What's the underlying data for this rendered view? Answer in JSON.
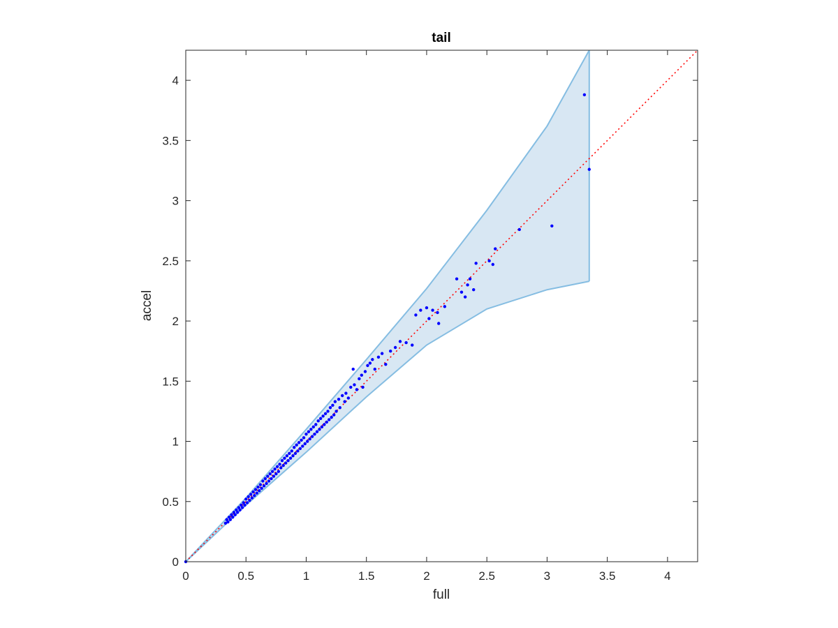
{
  "chart_data": {
    "type": "scatter",
    "title": "tail",
    "xlabel": "full",
    "ylabel": "accel",
    "xlim": [
      0,
      4.25
    ],
    "ylim": [
      0,
      4.25
    ],
    "xticks": [
      0,
      0.5,
      1,
      1.5,
      2,
      2.5,
      3,
      3.5,
      4
    ],
    "yticks": [
      0,
      0.5,
      1,
      1.5,
      2,
      2.5,
      3,
      3.5,
      4
    ],
    "grid": false,
    "colors": {
      "points": "#0000ff",
      "reference_line": "#ff0000",
      "band_fill": "#d8e7f3",
      "band_edge": "#85bde2",
      "axes": "#262626"
    },
    "reference_line": {
      "style": "dotted",
      "x": [
        0,
        4.25
      ],
      "y": [
        0,
        4.25
      ]
    },
    "band": {
      "upper": {
        "x": [
          0,
          0.5,
          1.0,
          1.5,
          2.0,
          2.5,
          3.0,
          3.35
        ],
        "y": [
          0,
          0.53,
          1.1,
          1.68,
          2.27,
          2.92,
          3.62,
          4.25
        ]
      },
      "lower": {
        "x": [
          0,
          0.5,
          1.0,
          1.5,
          2.0,
          2.5,
          3.0,
          3.35
        ],
        "y": [
          0,
          0.47,
          0.91,
          1.37,
          1.8,
          2.1,
          2.26,
          2.33
        ]
      }
    },
    "series": [
      {
        "points": [
          [
            0.0,
            0.0
          ],
          [
            0.33,
            0.32
          ],
          [
            0.34,
            0.35
          ],
          [
            0.35,
            0.33
          ],
          [
            0.36,
            0.37
          ],
          [
            0.37,
            0.35
          ],
          [
            0.38,
            0.39
          ],
          [
            0.39,
            0.37
          ],
          [
            0.4,
            0.41
          ],
          [
            0.41,
            0.39
          ],
          [
            0.42,
            0.43
          ],
          [
            0.43,
            0.41
          ],
          [
            0.44,
            0.45
          ],
          [
            0.45,
            0.43
          ],
          [
            0.46,
            0.47
          ],
          [
            0.47,
            0.45
          ],
          [
            0.48,
            0.49
          ],
          [
            0.49,
            0.47
          ],
          [
            0.5,
            0.52
          ],
          [
            0.51,
            0.49
          ],
          [
            0.52,
            0.54
          ],
          [
            0.53,
            0.51
          ],
          [
            0.54,
            0.56
          ],
          [
            0.55,
            0.53
          ],
          [
            0.56,
            0.58
          ],
          [
            0.57,
            0.55
          ],
          [
            0.58,
            0.6
          ],
          [
            0.59,
            0.57
          ],
          [
            0.6,
            0.62
          ],
          [
            0.61,
            0.59
          ],
          [
            0.62,
            0.64
          ],
          [
            0.63,
            0.61
          ],
          [
            0.64,
            0.67
          ],
          [
            0.65,
            0.63
          ],
          [
            0.66,
            0.69
          ],
          [
            0.67,
            0.65
          ],
          [
            0.68,
            0.71
          ],
          [
            0.69,
            0.67
          ],
          [
            0.7,
            0.73
          ],
          [
            0.71,
            0.69
          ],
          [
            0.72,
            0.75
          ],
          [
            0.73,
            0.71
          ],
          [
            0.74,
            0.77
          ],
          [
            0.75,
            0.73
          ],
          [
            0.76,
            0.79
          ],
          [
            0.77,
            0.75
          ],
          [
            0.78,
            0.81
          ],
          [
            0.79,
            0.78
          ],
          [
            0.8,
            0.84
          ],
          [
            0.81,
            0.8
          ],
          [
            0.82,
            0.86
          ],
          [
            0.83,
            0.82
          ],
          [
            0.84,
            0.88
          ],
          [
            0.85,
            0.84
          ],
          [
            0.86,
            0.9
          ],
          [
            0.87,
            0.86
          ],
          [
            0.88,
            0.92
          ],
          [
            0.89,
            0.88
          ],
          [
            0.9,
            0.95
          ],
          [
            0.91,
            0.9
          ],
          [
            0.92,
            0.97
          ],
          [
            0.93,
            0.92
          ],
          [
            0.94,
            0.99
          ],
          [
            0.95,
            0.94
          ],
          [
            0.96,
            1.01
          ],
          [
            0.97,
            0.96
          ],
          [
            0.98,
            1.03
          ],
          [
            0.99,
            0.98
          ],
          [
            1.0,
            1.06
          ],
          [
            1.01,
            1.0
          ],
          [
            1.02,
            1.08
          ],
          [
            1.03,
            1.02
          ],
          [
            1.04,
            1.1
          ],
          [
            1.05,
            1.04
          ],
          [
            1.06,
            1.12
          ],
          [
            1.07,
            1.06
          ],
          [
            1.08,
            1.14
          ],
          [
            1.09,
            1.08
          ],
          [
            1.1,
            1.17
          ],
          [
            1.11,
            1.1
          ],
          [
            1.12,
            1.19
          ],
          [
            1.13,
            1.12
          ],
          [
            1.14,
            1.21
          ],
          [
            1.15,
            1.14
          ],
          [
            1.16,
            1.23
          ],
          [
            1.17,
            1.16
          ],
          [
            1.18,
            1.25
          ],
          [
            1.19,
            1.18
          ],
          [
            1.2,
            1.28
          ],
          [
            1.21,
            1.2
          ],
          [
            1.22,
            1.3
          ],
          [
            1.23,
            1.22
          ],
          [
            1.24,
            1.33
          ],
          [
            1.25,
            1.25
          ],
          [
            1.27,
            1.35
          ],
          [
            1.28,
            1.28
          ],
          [
            1.3,
            1.38
          ],
          [
            1.32,
            1.33
          ],
          [
            1.33,
            1.4
          ],
          [
            1.35,
            1.36
          ],
          [
            1.37,
            1.45
          ],
          [
            1.39,
            1.6
          ],
          [
            1.4,
            1.47
          ],
          [
            1.42,
            1.43
          ],
          [
            1.44,
            1.52
          ],
          [
            1.46,
            1.55
          ],
          [
            1.47,
            1.45
          ],
          [
            1.49,
            1.58
          ],
          [
            1.51,
            1.63
          ],
          [
            1.53,
            1.65
          ],
          [
            1.55,
            1.68
          ],
          [
            1.57,
            1.6
          ],
          [
            1.6,
            1.7
          ],
          [
            1.63,
            1.73
          ],
          [
            1.66,
            1.64
          ],
          [
            1.7,
            1.75
          ],
          [
            1.74,
            1.78
          ],
          [
            1.78,
            1.83
          ],
          [
            1.83,
            1.82
          ],
          [
            1.88,
            1.8
          ],
          [
            1.91,
            2.05
          ],
          [
            1.95,
            2.09
          ],
          [
            2.0,
            2.11
          ],
          [
            2.02,
            2.02
          ],
          [
            2.05,
            2.09
          ],
          [
            2.09,
            2.07
          ],
          [
            2.1,
            1.98
          ],
          [
            2.15,
            2.12
          ],
          [
            2.25,
            2.35
          ],
          [
            2.29,
            2.24
          ],
          [
            2.32,
            2.2
          ],
          [
            2.34,
            2.3
          ],
          [
            2.36,
            2.35
          ],
          [
            2.39,
            2.26
          ],
          [
            2.41,
            2.48
          ],
          [
            2.52,
            2.5
          ],
          [
            2.55,
            2.47
          ],
          [
            2.57,
            2.6
          ],
          [
            2.77,
            2.76
          ],
          [
            3.04,
            2.79
          ],
          [
            3.31,
            3.88
          ],
          [
            3.35,
            3.26
          ]
        ]
      }
    ]
  }
}
